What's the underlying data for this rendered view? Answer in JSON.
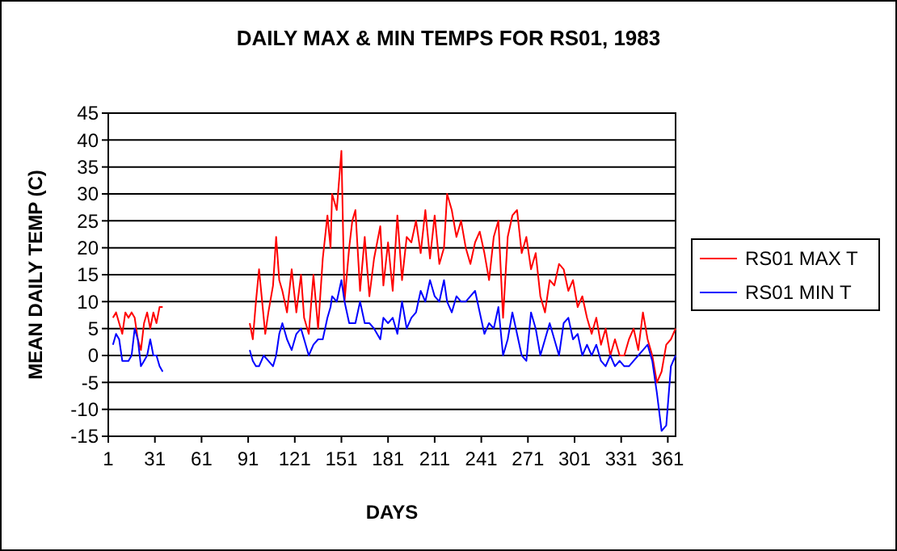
{
  "chart_data": {
    "type": "line",
    "title": "DAILY MAX & MIN TEMPS FOR RS01, 1983",
    "xlabel": "DAYS",
    "ylabel": "MEAN DAILY TEMP (C)",
    "xlim": [
      1,
      366
    ],
    "xticks": [
      1,
      31,
      61,
      91,
      121,
      151,
      181,
      211,
      241,
      271,
      301,
      331,
      361
    ],
    "ylim": [
      -15,
      45
    ],
    "yticks": [
      -15,
      -10,
      -5,
      0,
      5,
      10,
      15,
      20,
      25,
      30,
      35,
      40,
      45
    ],
    "grid": "y",
    "legend": "right",
    "marker": "none",
    "line_style": "solid",
    "series": [
      {
        "name": "RS01 MAX T",
        "color": "#ff0000",
        "x": [
          4,
          6,
          8,
          10,
          12,
          14,
          16,
          18,
          20,
          22,
          24,
          26,
          28,
          30,
          32,
          34,
          36,
          60,
          92,
          94,
          96,
          98,
          101,
          102,
          104,
          107,
          109,
          111,
          113,
          116,
          119,
          122,
          125,
          127,
          130,
          133,
          136,
          139,
          142,
          144,
          145,
          148,
          151,
          153,
          156,
          158,
          160,
          163,
          166,
          169,
          172,
          176,
          178,
          181,
          184,
          187,
          190,
          193,
          196,
          199,
          202,
          205,
          208,
          211,
          214,
          217,
          219,
          222,
          225,
          228,
          231,
          234,
          237,
          240,
          243,
          246,
          249,
          252,
          255,
          258,
          261,
          264,
          267,
          270,
          273,
          276,
          279,
          282,
          285,
          288,
          291,
          294,
          297,
          300,
          303,
          306,
          309,
          312,
          315,
          318,
          321,
          324,
          327,
          330,
          333,
          336,
          339,
          342,
          345,
          348,
          351,
          354,
          357,
          360,
          363,
          366
        ],
        "values": [
          7,
          8,
          6,
          4,
          8,
          7,
          8,
          7,
          3,
          1,
          6,
          8,
          5,
          8,
          6,
          9,
          9,
          null,
          6,
          3,
          10,
          16,
          7,
          4,
          8,
          13,
          22,
          14,
          12,
          8,
          16,
          8,
          15,
          7,
          4,
          15,
          5,
          18,
          26,
          20,
          30,
          27,
          38,
          10,
          20,
          25,
          27,
          12,
          22,
          11,
          18,
          24,
          13,
          21,
          12,
          26,
          14,
          22,
          21,
          25,
          19,
          27,
          18,
          26,
          17,
          20,
          30,
          27,
          22,
          25,
          20,
          17,
          21,
          23,
          19,
          14,
          22,
          25,
          7,
          22,
          26,
          27,
          19,
          22,
          16,
          19,
          11,
          8,
          14,
          13,
          17,
          16,
          12,
          14,
          9,
          11,
          7,
          4,
          7,
          2,
          5,
          0,
          3,
          0,
          0,
          3,
          5,
          1,
          8,
          3,
          0,
          -5,
          -3,
          2,
          3,
          5
        ]
      },
      {
        "name": "RS01 MIN T",
        "color": "#0000ff",
        "x": [
          4,
          6,
          8,
          10,
          12,
          14,
          16,
          18,
          20,
          22,
          24,
          26,
          28,
          30,
          32,
          34,
          36,
          60,
          92,
          94,
          96,
          98,
          101,
          104,
          107,
          109,
          111,
          113,
          116,
          119,
          122,
          125,
          127,
          130,
          133,
          136,
          139,
          142,
          144,
          145,
          148,
          151,
          153,
          156,
          160,
          163,
          166,
          169,
          172,
          176,
          178,
          181,
          184,
          187,
          190,
          193,
          196,
          199,
          202,
          205,
          208,
          211,
          214,
          217,
          219,
          222,
          225,
          228,
          231,
          234,
          237,
          240,
          243,
          246,
          249,
          252,
          255,
          258,
          261,
          264,
          267,
          270,
          273,
          276,
          279,
          282,
          285,
          288,
          291,
          294,
          297,
          300,
          303,
          306,
          309,
          312,
          315,
          318,
          321,
          324,
          327,
          330,
          333,
          336,
          339,
          342,
          345,
          348,
          351,
          354,
          357,
          360,
          363,
          366
        ],
        "values": [
          2,
          4,
          3,
          -1,
          -1,
          -1,
          0,
          5,
          3,
          -2,
          -1,
          0,
          3,
          0,
          0,
          -2,
          -3,
          null,
          1,
          -1,
          -2,
          -2,
          0,
          -1,
          -2,
          0,
          4,
          6,
          3,
          1,
          4,
          5,
          3,
          0,
          2,
          3,
          3,
          7,
          9,
          11,
          10,
          14,
          10,
          6,
          6,
          10,
          6,
          6,
          5,
          3,
          7,
          6,
          7,
          4,
          10,
          5,
          7,
          8,
          12,
          10,
          14,
          11,
          10,
          14,
          10,
          8,
          11,
          10,
          10,
          11,
          12,
          8,
          4,
          6,
          5,
          9,
          0,
          3,
          8,
          4,
          0,
          -1,
          8,
          5,
          0,
          3,
          6,
          3,
          0,
          6,
          7,
          3,
          4,
          0,
          2,
          0,
          2,
          -1,
          -2,
          0,
          -2,
          -1,
          -2,
          -2,
          -1,
          0,
          1,
          2,
          -1,
          -7,
          -14,
          -13,
          -2,
          0
        ]
      }
    ]
  }
}
